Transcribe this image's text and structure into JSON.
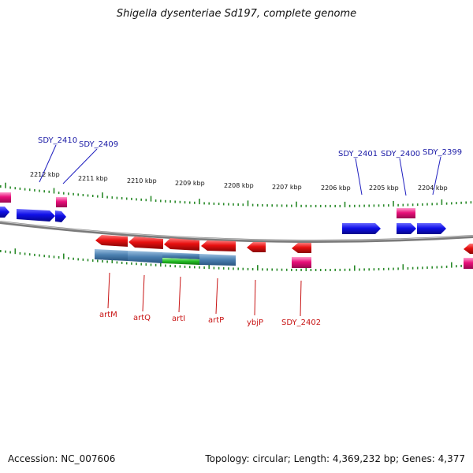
{
  "title": "Shigella dysenteriae Sd197, complete genome",
  "footer": {
    "accession": "Accession: NC_007606",
    "summary": "Topology: circular; Length: 4,369,232 bp; Genes: 4,377"
  },
  "ticks": [
    "2212 kbp",
    "2211 kbp",
    "2210 kbp",
    "2209 kbp",
    "2208 kbp",
    "2207 kbp",
    "2206 kbp",
    "2205 kbp",
    "2204 kbp"
  ],
  "genes_top": [
    "SDY_2410",
    "SDY_2409",
    "SDY_2401",
    "SDY_2400",
    "SDY_2399"
  ],
  "genes_bottom": [
    "artM",
    "artQ",
    "artI",
    "artP",
    "ybjP",
    "SDY_2402"
  ],
  "colors": {
    "forward_cds": "#1010e8",
    "reverse_cds": "#e81010",
    "gene_box": "#e8107a",
    "domain_blue": "#4a7fb0",
    "domain_green": "#22bb22",
    "tick": "#2a8a2a",
    "backbone": "#8a8a8a"
  }
}
